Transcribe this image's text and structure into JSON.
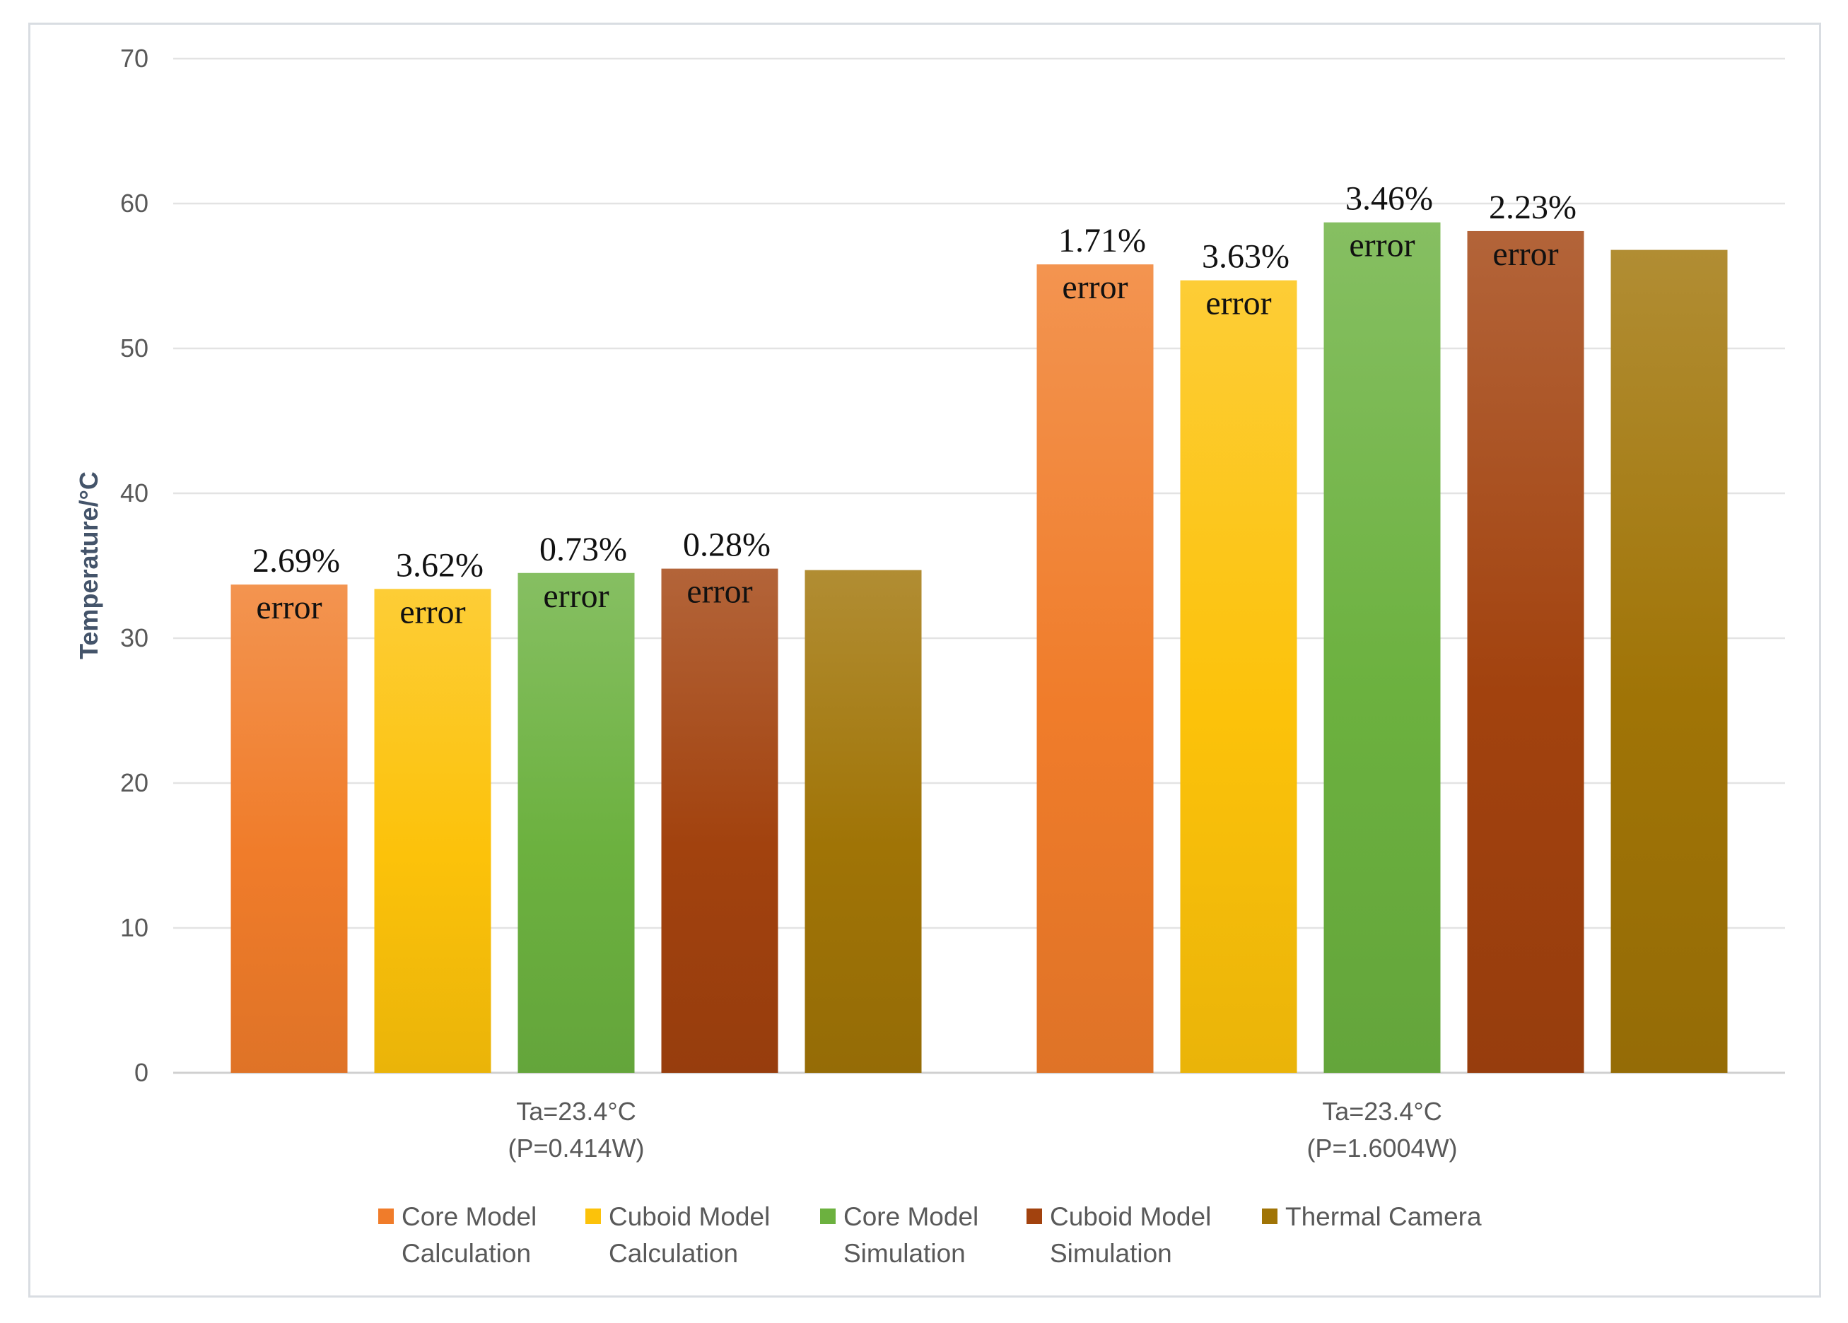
{
  "chart_data": {
    "type": "bar",
    "title": "",
    "xlabel": "",
    "ylabel": "Temperature/°C",
    "ylim": [
      0,
      70
    ],
    "yticks": [
      0,
      10,
      20,
      30,
      40,
      50,
      60,
      70
    ],
    "grid": true,
    "legend_position": "bottom",
    "categories": [
      [
        "Ta=23.4°C",
        "(P=0.414W)"
      ],
      [
        "Ta=23.4°C",
        "(P=1.6004W)"
      ]
    ],
    "series": [
      {
        "name": [
          "Core Model",
          "Calculation"
        ],
        "color": "#f07c2a",
        "values": [
          33.7,
          55.8
        ],
        "errors": [
          "2.69%",
          "1.71%"
        ]
      },
      {
        "name": [
          "Cuboid Model",
          "Calculation"
        ],
        "color": "#fcc20a",
        "values": [
          33.4,
          54.7
        ],
        "errors": [
          "3.62%",
          "3.63%"
        ]
      },
      {
        "name": [
          "Core Model",
          "Simulation"
        ],
        "color": "#6cb13f",
        "values": [
          34.5,
          58.7
        ],
        "errors": [
          "0.73%",
          "3.46%"
        ]
      },
      {
        "name": [
          "Cuboid Model",
          "Simulation"
        ],
        "color": "#a2420e",
        "values": [
          34.8,
          58.1
        ],
        "errors": [
          "0.28%",
          "2.23%"
        ]
      },
      {
        "name": [
          "Thermal Camera"
        ],
        "color": "#a07406",
        "values": [
          34.7,
          56.8
        ],
        "errors": [
          "",
          ""
        ]
      }
    ],
    "error_word": "error"
  }
}
